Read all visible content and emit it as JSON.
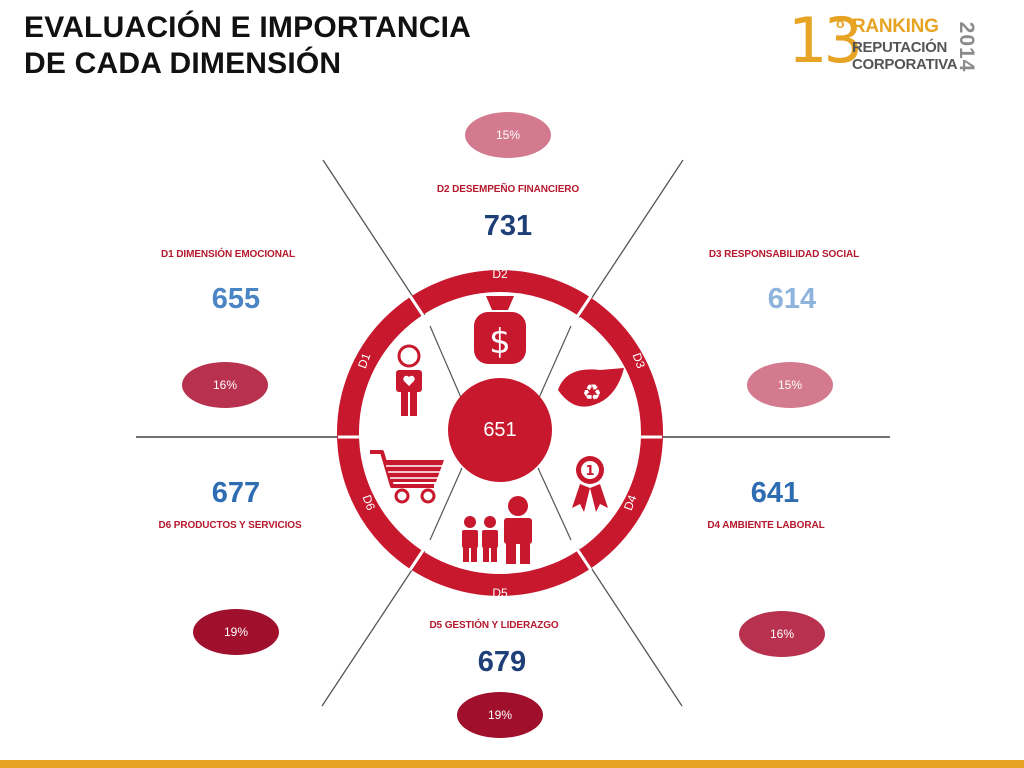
{
  "title": {
    "line1": "EVALUACIÓN E IMPORTANCIA",
    "line2": "DE CADA DIMENSIÓN"
  },
  "logo": {
    "number": "13",
    "ordinal": "o",
    "line1": "RANKING",
    "line2": "REPUTACIÓN",
    "line3": "CORPORATIVA",
    "year": "2014"
  },
  "center_score": "651",
  "ring_labels": {
    "d1": "D1",
    "d2": "D2",
    "d3": "D3",
    "d4": "D4",
    "d5": "D5",
    "d6": "D6"
  },
  "dimensions": {
    "d1": {
      "label": "D1 DIMENSIÓN EMOCIONAL",
      "score": "655",
      "weight": "16%"
    },
    "d2": {
      "label": "D2 DESEMPEÑO FINANCIERO",
      "score": "731",
      "weight": "15%"
    },
    "d3": {
      "label": "D3 RESPONSABILIDAD SOCIAL",
      "score": "614",
      "weight": "15%"
    },
    "d4": {
      "label": "D4 AMBIENTE LABORAL",
      "score": "641",
      "weight": "16%"
    },
    "d5": {
      "label": "D5 GESTIÓN Y LIDERAZGO",
      "score": "679",
      "weight": "19%"
    },
    "d6": {
      "label": "D6 PRODUCTOS Y SERVICIOS",
      "score": "677",
      "weight": "19%"
    }
  },
  "colors": {
    "ring": "#c8182e",
    "accent": "#e6a324",
    "weight_15": "#d47a8e",
    "weight_16": "#b8324f",
    "weight_19": "#a0102c",
    "score_dark": "#1f3f78",
    "score_mid": "#2f6db2",
    "score_light": "#8eb4dd"
  },
  "icons": {
    "d1": "person-heart-icon",
    "d2": "money-bag-icon",
    "d3": "recycle-leaf-icon",
    "d4": "award-ribbon-icon",
    "d5": "people-group-icon",
    "d6": "shopping-cart-icon"
  }
}
